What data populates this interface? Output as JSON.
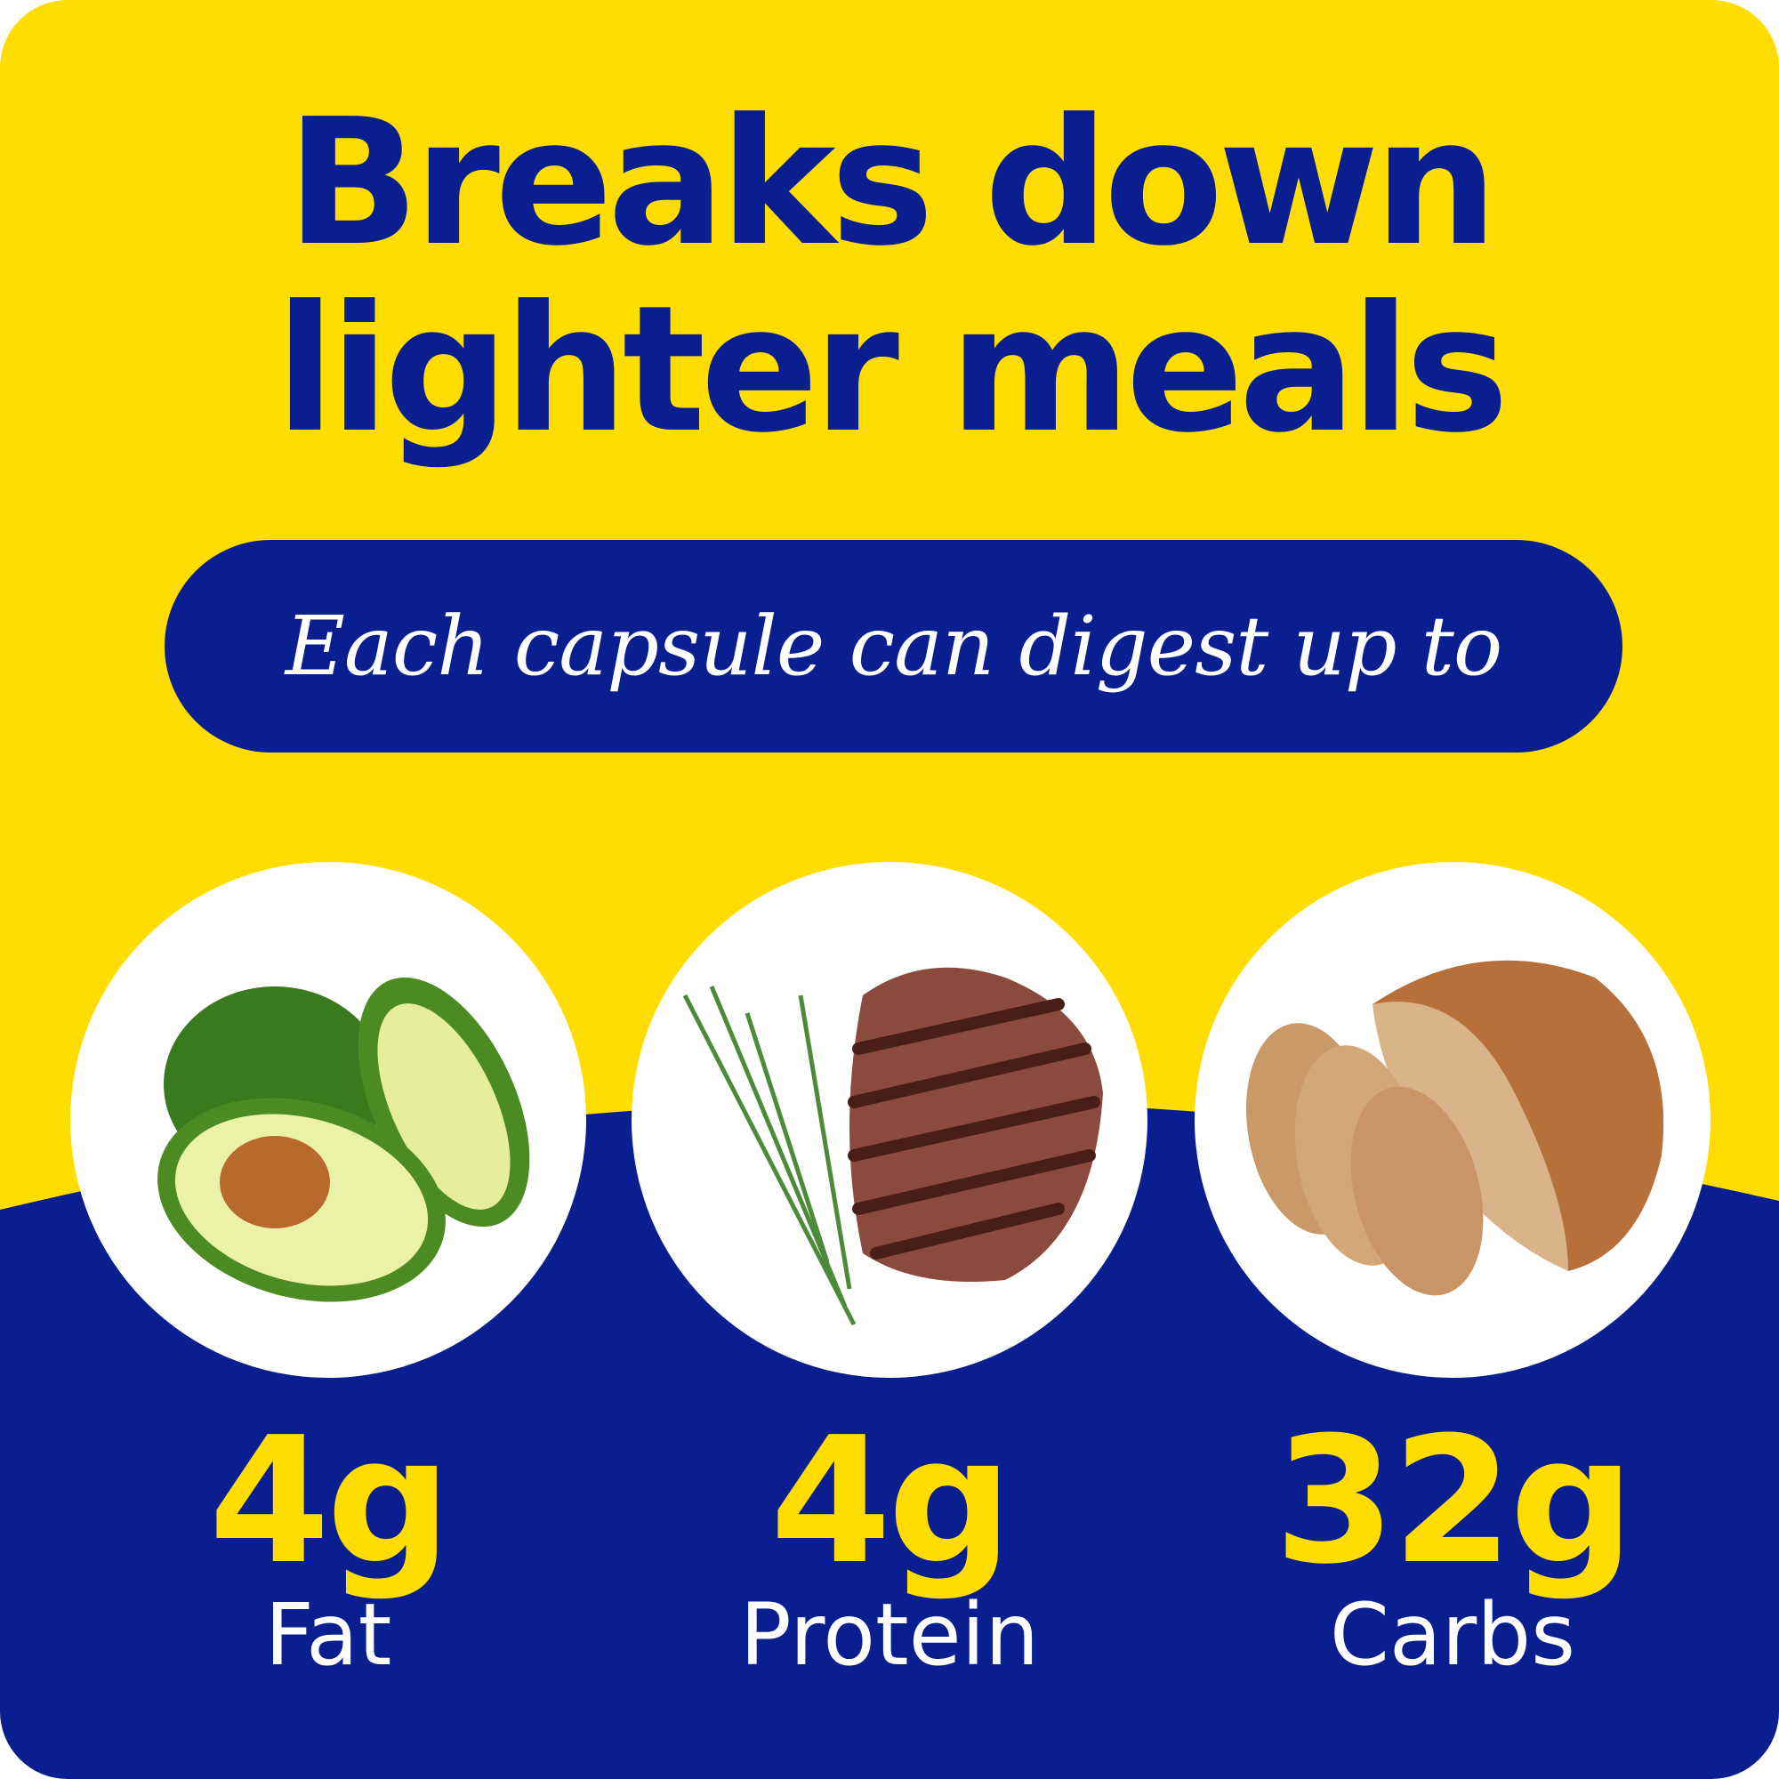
{
  "headline": {
    "line1": "Breaks down",
    "line2": "lighter meals"
  },
  "subtitle": "Each capsule can digest up to",
  "nutrients": [
    {
      "amount": "4g",
      "label": "Fat",
      "icon": "avocado-icon"
    },
    {
      "amount": "4g",
      "label": "Protein",
      "icon": "steak-icon"
    },
    {
      "amount": "32g",
      "label": "Carbs",
      "icon": "bread-icon"
    }
  ],
  "colors": {
    "yellow": "#FFDD00",
    "blue": "#0A1F8F"
  }
}
